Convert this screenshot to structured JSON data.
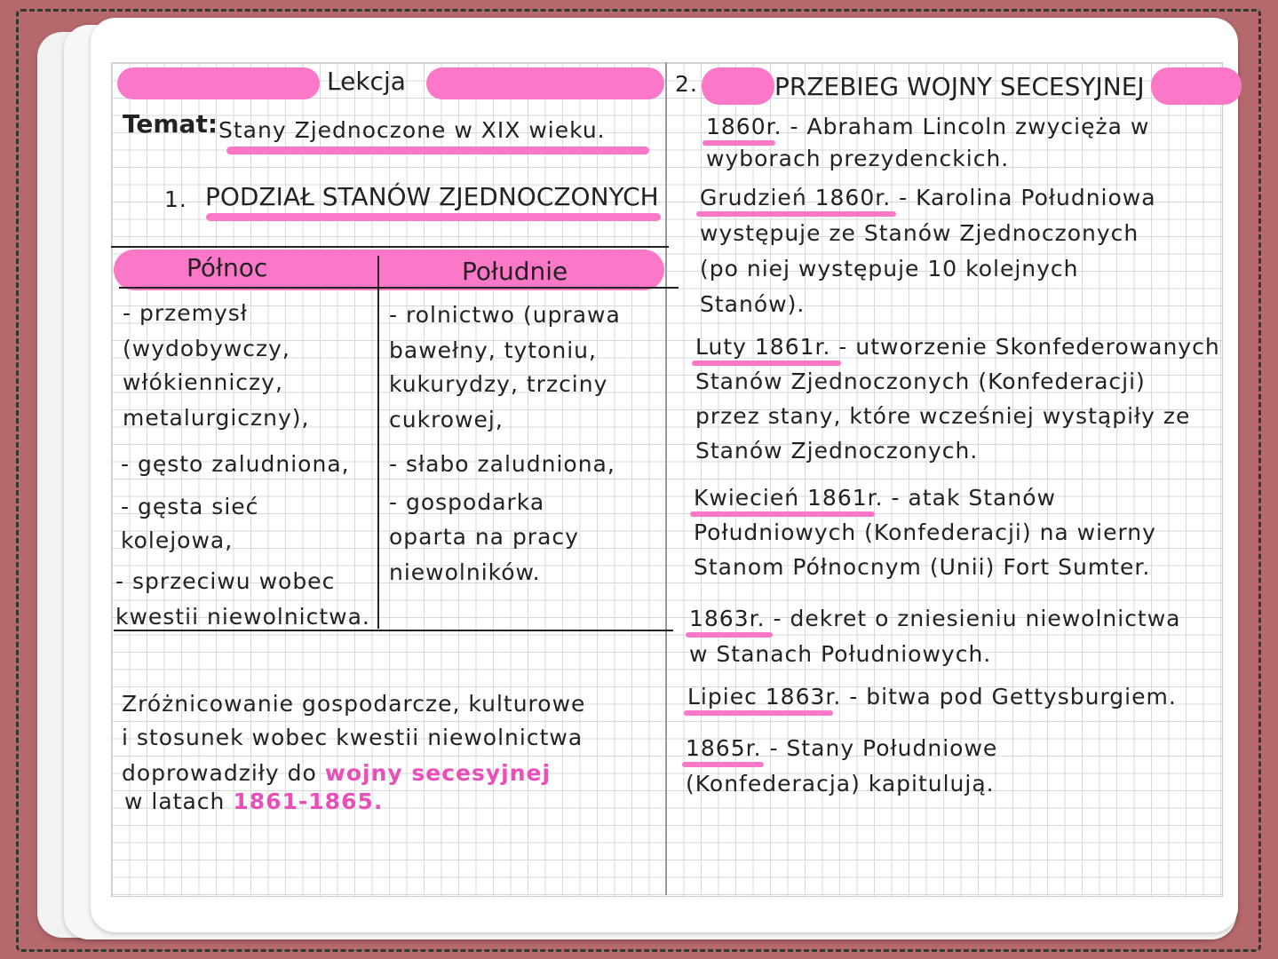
{
  "lesson_label": "Lekcja",
  "topic": {
    "label": "Temat:",
    "value": "Stany Zjednoczone w XIX wieku."
  },
  "section1": {
    "number": "1.",
    "title": "PODZIAŁ STANÓW ZJEDNOCZONYCH"
  },
  "table": {
    "headers": [
      "Północ",
      "Południe"
    ],
    "north": [
      "- przemysł",
      "(wydobywczy,",
      "włókienniczy,",
      "metalurgiczny),",
      "- gęsto zaludniona,",
      "- gęsta sieć",
      "kolejowa,",
      "- sprzeciwu wobec",
      "kwestii niewolnictwa."
    ],
    "south": [
      "- rolnictwo (uprawa",
      "bawełny, tytoniu,",
      "kukurydzy, trzciny",
      "cukrowej,",
      "- słabo zaludniona,",
      "- gospodarka",
      "oparta na pracy",
      "niewolników."
    ]
  },
  "summary": {
    "lines": [
      "Zróżnicowanie gospodarcze, kulturowe",
      "i stosunek wobec kwestii niewolnictwa",
      "doprowadziły do"
    ],
    "highlight1": "wojny secesyjnej",
    "prefix2": "w latach",
    "highlight2": "1861-1865."
  },
  "section2": {
    "number": "2.",
    "title": "PRZEBIEG WOJNY SECESYJNEJ"
  },
  "events": [
    {
      "date": "1860r.",
      "lines": [
        "- Abraham Lincoln zwycięża w",
        "wyborach prezydenckich."
      ]
    },
    {
      "date": "Grudzień 1860r.",
      "lines": [
        "- Karolina Południowa",
        "występuje ze Stanów Zjednoczonych",
        "(po niej występuje 10 kolejnych",
        "Stanów)."
      ]
    },
    {
      "date": "Luty 1861r.",
      "lines": [
        "- utworzenie Skonfederowanych",
        "Stanów Zjednoczonych (Konfederacji)",
        "przez stany, które wcześniej wystąpiły ze",
        "Stanów Zjednoczonych."
      ]
    },
    {
      "date": "Kwiecień 1861r.",
      "lines": [
        "- atak Stanów",
        "Południowych (Konfederacji) na wierny",
        "Stanom Północnym (Unii) Fort Sumter."
      ]
    },
    {
      "date": "1863r.",
      "lines": [
        "- dekret o zniesieniu niewolnictwa",
        "w Stanach Południowych."
      ]
    },
    {
      "date": "Lipiec 1863r.",
      "lines": [
        "- bitwa pod Gettysburgiem."
      ]
    },
    {
      "date": "1865r.",
      "lines": [
        "- Stany Południowe",
        "(Konfederacja) kapitulują."
      ]
    }
  ],
  "colors": {
    "highlight": "#fb78c9",
    "background": "#b5696c"
  }
}
